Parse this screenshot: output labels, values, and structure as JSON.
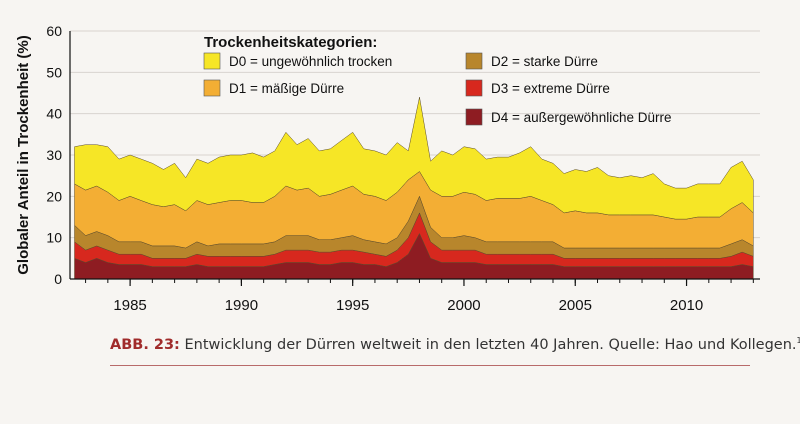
{
  "chart_data": {
    "type": "area",
    "stacked": true,
    "ylabel": "Globaler Anteil in Trockenheit (%)",
    "ylim": [
      0,
      60
    ],
    "yticks": [
      0,
      10,
      20,
      30,
      40,
      50,
      60
    ],
    "xlim": [
      1982.3,
      2013.3
    ],
    "xticks": [
      1985,
      1990,
      1995,
      2000,
      2005,
      2010
    ],
    "legend_title": "Trockenheitskategorien:",
    "legend_placement": "top (inside plot)",
    "x": [
      1982.5,
      1983,
      1983.5,
      1984,
      1984.5,
      1985,
      1985.5,
      1986,
      1986.5,
      1987,
      1987.5,
      1988,
      1988.5,
      1989,
      1989.5,
      1990,
      1990.5,
      1991,
      1991.5,
      1992,
      1992.5,
      1993,
      1993.5,
      1994,
      1994.5,
      1995,
      1995.5,
      1996,
      1996.5,
      1997,
      1997.5,
      1998,
      1998.5,
      1999,
      1999.5,
      2000,
      2000.5,
      2001,
      2001.5,
      2002,
      2002.5,
      2003,
      2003.5,
      2004,
      2004.5,
      2005,
      2005.5,
      2006,
      2006.5,
      2007,
      2007.5,
      2008,
      2008.5,
      2009,
      2009.5,
      2010,
      2010.5,
      2011,
      2011.5,
      2012,
      2012.5,
      2013
    ],
    "series": [
      {
        "name": "D4 = außergewöhnliche Dürre",
        "color": "#8e1c22",
        "values": [
          5,
          4,
          5,
          4,
          3.5,
          3.5,
          3.5,
          3,
          3,
          3,
          3,
          3.5,
          3,
          3,
          3,
          3,
          3,
          3,
          3.5,
          4,
          4,
          4,
          3.5,
          3.5,
          4,
          4,
          3.5,
          3.5,
          3,
          4,
          6,
          11,
          5,
          4,
          4,
          4,
          4,
          3.5,
          3.5,
          3.5,
          3.5,
          3.5,
          3.5,
          3.5,
          3,
          3,
          3,
          3,
          3,
          3,
          3,
          3,
          3,
          3,
          3,
          3,
          3,
          3,
          3,
          3,
          3.5,
          3
        ]
      },
      {
        "name": "D3 = extreme Dürre",
        "color": "#d7281e",
        "values": [
          4,
          3,
          3,
          3,
          2.5,
          2.5,
          2.5,
          2,
          2,
          2,
          2,
          2.5,
          2.5,
          2.5,
          2.5,
          2.5,
          2.5,
          2.5,
          2.5,
          3,
          3,
          3,
          3,
          3,
          3,
          3,
          3,
          2.5,
          2.5,
          3,
          4,
          5,
          4,
          3,
          3,
          3,
          3,
          2.5,
          2.5,
          2.5,
          2.5,
          2.5,
          2.5,
          2.5,
          2,
          2,
          2,
          2,
          2,
          2,
          2,
          2,
          2,
          2,
          2,
          2,
          2,
          2,
          2,
          2.5,
          3,
          2.5
        ]
      },
      {
        "name": "D2 = starke Dürre",
        "color": "#b8862c",
        "values": [
          4,
          3.5,
          3.5,
          3.5,
          3,
          3,
          3,
          3,
          3,
          3,
          2.5,
          3,
          2.5,
          3,
          3,
          3,
          3,
          3,
          3,
          3.5,
          3.5,
          3.5,
          3,
          3,
          3,
          3.5,
          3,
          3,
          3,
          3,
          4,
          4,
          3.5,
          3,
          3,
          3.5,
          3,
          3,
          3,
          3,
          3,
          3,
          3,
          3,
          2.5,
          2.5,
          2.5,
          2.5,
          2.5,
          2.5,
          2.5,
          2.5,
          2.5,
          2.5,
          2.5,
          2.5,
          2.5,
          2.5,
          2.5,
          3,
          3,
          2.5
        ]
      },
      {
        "name": "D1 = mäßige Dürre",
        "color": "#f3ae34",
        "values": [
          10,
          11,
          11,
          10.5,
          10,
          11,
          10,
          10,
          9.5,
          10,
          9,
          10,
          10,
          10,
          10.5,
          10.5,
          10,
          10,
          11,
          12,
          11,
          11.5,
          10.5,
          11,
          11.5,
          12,
          11,
          11,
          10.5,
          11,
          10,
          6,
          9,
          10,
          10,
          10.5,
          10.5,
          10,
          10.5,
          10.5,
          10.5,
          11,
          10,
          9,
          8.5,
          9,
          8.5,
          8.5,
          8,
          8,
          8,
          8,
          8,
          7.5,
          7,
          7,
          7.5,
          7.5,
          7.5,
          8.5,
          9,
          8
        ]
      },
      {
        "name": "D0 = ungewöhnlich trocken",
        "color": "#f6e626",
        "values": [
          9,
          11,
          10,
          11,
          10,
          10,
          10,
          10,
          9,
          10,
          8,
          10,
          10,
          11,
          11,
          11,
          12,
          11,
          11,
          13,
          11,
          12,
          11,
          11,
          12,
          13,
          11,
          11,
          11,
          12,
          7,
          18,
          7,
          11,
          10,
          11,
          11,
          10,
          10,
          10,
          11,
          12,
          10,
          10,
          9.5,
          10,
          10,
          11,
          9.5,
          9,
          9.5,
          9,
          10,
          8,
          7.5,
          7.5,
          8,
          8,
          8,
          10,
          10,
          8
        ]
      }
    ]
  },
  "caption": {
    "label": "ABB. 23:",
    "text": " Entwicklung der Dürren weltweit in den letzten 40 Jahren. Quelle: Hao und Kollegen.",
    "ref": "11"
  }
}
